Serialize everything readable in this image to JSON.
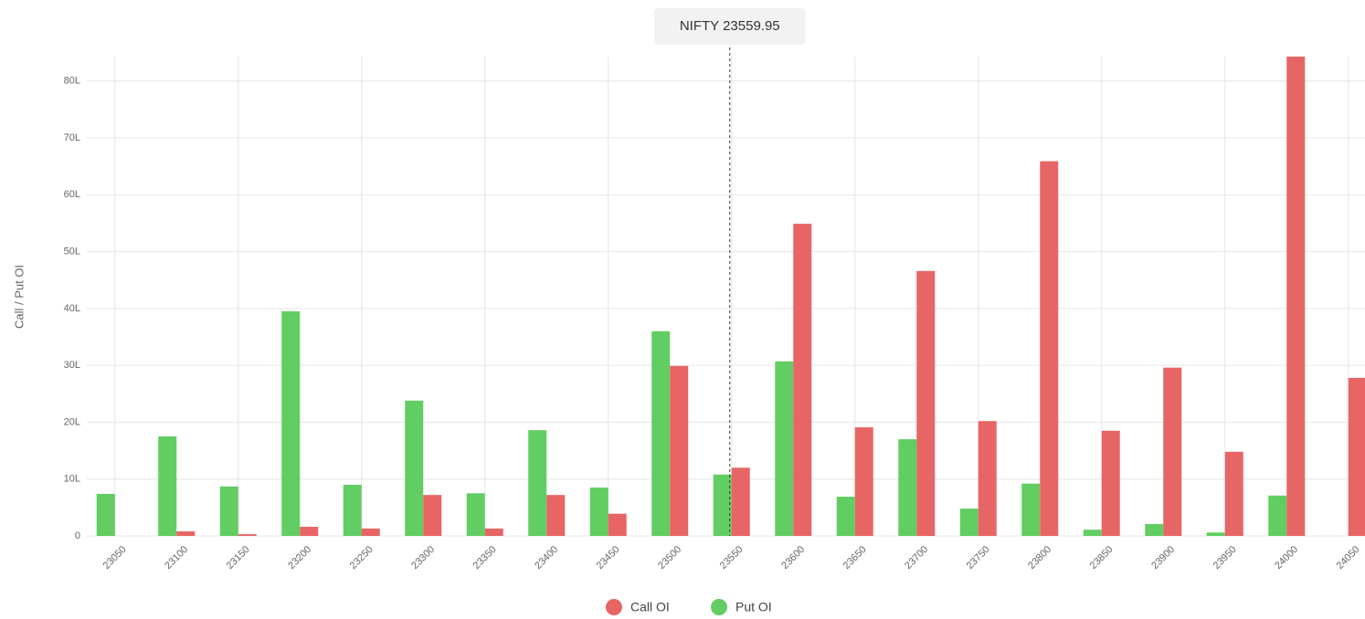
{
  "chart_data": {
    "type": "bar",
    "y_label": "Call / Put OI",
    "annotation": {
      "text": "NIFTY 23559.95",
      "x": 23559.95
    },
    "categories": [
      "23050",
      "23100",
      "23150",
      "23200",
      "23250",
      "23300",
      "23350",
      "23400",
      "23450",
      "23500",
      "23550",
      "23600",
      "23650",
      "23700",
      "23750",
      "23800",
      "23850",
      "23900",
      "23950",
      "24000",
      "24050"
    ],
    "series": [
      {
        "name": "Call OI",
        "color": "#e86565",
        "values": [
          0,
          0.8,
          0.3,
          1.6,
          1.3,
          7.2,
          1.3,
          7.2,
          3.9,
          29.9,
          12.0,
          54.9,
          19.1,
          46.6,
          20.2,
          65.9,
          18.5,
          29.6,
          14.8,
          84.3,
          27.8
        ]
      },
      {
        "name": "Put OI",
        "color": "#62cd62",
        "values": [
          7.4,
          17.5,
          8.7,
          39.5,
          9.0,
          23.8,
          7.5,
          18.6,
          8.5,
          36.0,
          10.8,
          30.7,
          6.9,
          17.0,
          4.8,
          9.2,
          1.1,
          2.1,
          0.6,
          7.1,
          0
        ]
      }
    ],
    "ylim": [
      0,
      84.3
    ],
    "yticks": [
      0,
      {
        "value": 10,
        "label": "10L"
      },
      {
        "value": 20,
        "label": "20L"
      },
      {
        "value": 30,
        "label": "30L"
      },
      {
        "value": 40,
        "label": "40L"
      },
      {
        "value": 50,
        "label": "50L"
      },
      {
        "value": 60,
        "label": "60L"
      },
      {
        "value": 70,
        "label": "70L"
      },
      {
        "value": 80,
        "label": "80L"
      }
    ],
    "grid": true
  }
}
